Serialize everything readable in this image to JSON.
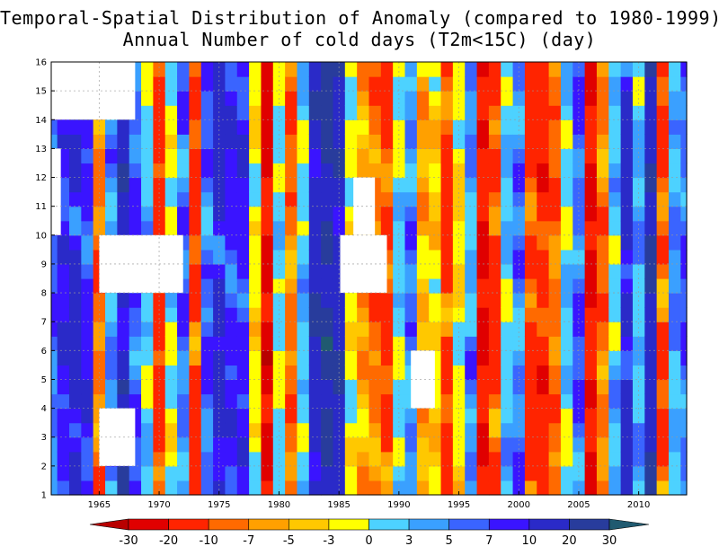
{
  "chart_data": {
    "type": "heatmap",
    "title": "Temporal-Spatial Distribution of Anomaly (compared to 1980-1999) of",
    "subtitle": "Annual Number of cold days (T2m<15C) (day)",
    "xlim": [
      1961,
      2014
    ],
    "ylim": [
      1,
      16
    ],
    "x_ticks": [
      "1965",
      "1970",
      "1975",
      "1980",
      "1985",
      "1990",
      "1995",
      "2000",
      "2005",
      "2010"
    ],
    "x_tick_values": [
      1965,
      1970,
      1975,
      1980,
      1985,
      1990,
      1995,
      2000,
      2005,
      2010
    ],
    "y_ticks": [
      "1",
      "2",
      "3",
      "4",
      "5",
      "6",
      "7",
      "8",
      "9",
      "10",
      "11",
      "12",
      "13",
      "14",
      "15",
      "16"
    ],
    "grid": true,
    "colorbar": {
      "labels": [
        "-30",
        "-20",
        "-10",
        "-7",
        "-5",
        "-3",
        "0",
        "3",
        "5",
        "7",
        "10",
        "20",
        "30"
      ],
      "levels": [
        -30,
        -20,
        -10,
        -7,
        -5,
        -3,
        0,
        3,
        5,
        7,
        10,
        20,
        30
      ],
      "colors": [
        "#b80000",
        "#e00000",
        "#ff2400",
        "#ff6a00",
        "#ffa000",
        "#ffc800",
        "#ffff00",
        "#4dd2ff",
        "#3aa0ff",
        "#3a64ff",
        "#3a14ff",
        "#2a2ac8",
        "#283c9c",
        "#205a70"
      ],
      "placement": "bottom"
    },
    "year_anomaly": [
      {
        "year": 1961,
        "value": 6
      },
      {
        "year": 1962,
        "value": 9
      },
      {
        "year": 1963,
        "value": 12
      },
      {
        "year": 1964,
        "value": 8
      },
      {
        "year": 1965,
        "value": -8
      },
      {
        "year": 1966,
        "value": 4
      },
      {
        "year": 1967,
        "value": 15
      },
      {
        "year": 1968,
        "value": 6
      },
      {
        "year": 1969,
        "value": 2
      },
      {
        "year": 1970,
        "value": -12
      },
      {
        "year": 1971,
        "value": 0
      },
      {
        "year": 1972,
        "value": 6
      },
      {
        "year": 1973,
        "value": -12
      },
      {
        "year": 1974,
        "value": 6
      },
      {
        "year": 1975,
        "value": 12
      },
      {
        "year": 1976,
        "value": 8
      },
      {
        "year": 1977,
        "value": 8
      },
      {
        "year": 1978,
        "value": -2
      },
      {
        "year": 1979,
        "value": -22
      },
      {
        "year": 1980,
        "value": 1
      },
      {
        "year": 1981,
        "value": -8
      },
      {
        "year": 1982,
        "value": 2
      },
      {
        "year": 1983,
        "value": 15
      },
      {
        "year": 1984,
        "value": 22
      },
      {
        "year": 1985,
        "value": 15
      },
      {
        "year": 1986,
        "value": -2
      },
      {
        "year": 1987,
        "value": -6
      },
      {
        "year": 1988,
        "value": -8
      },
      {
        "year": 1989,
        "value": -12
      },
      {
        "year": 1990,
        "value": 1
      },
      {
        "year": 1991,
        "value": 5
      },
      {
        "year": 1992,
        "value": -5
      },
      {
        "year": 1993,
        "value": -3
      },
      {
        "year": 1994,
        "value": -12
      },
      {
        "year": 1995,
        "value": -2
      },
      {
        "year": 1996,
        "value": 4
      },
      {
        "year": 1997,
        "value": -20
      },
      {
        "year": 1998,
        "value": -12
      },
      {
        "year": 1999,
        "value": 2
      },
      {
        "year": 2000,
        "value": 5
      },
      {
        "year": 2001,
        "value": -12
      },
      {
        "year": 2002,
        "value": -15
      },
      {
        "year": 2003,
        "value": -8
      },
      {
        "year": 2004,
        "value": 1
      },
      {
        "year": 2005,
        "value": 6
      },
      {
        "year": 2006,
        "value": -20
      },
      {
        "year": 2007,
        "value": -8
      },
      {
        "year": 2008,
        "value": 2
      },
      {
        "year": 2009,
        "value": 12
      },
      {
        "year": 2010,
        "value": 3
      },
      {
        "year": 2011,
        "value": 18
      },
      {
        "year": 2012,
        "value": -10
      },
      {
        "year": 2013,
        "value": 4
      },
      {
        "year": 2014,
        "value": 6
      }
    ],
    "missing_regions": [
      {
        "x": [
          1961.0,
          1968.0
        ],
        "y": [
          14.0,
          16.0
        ]
      },
      {
        "x": [
          1961.0,
          1961.8
        ],
        "y": [
          10.0,
          13.0
        ]
      },
      {
        "x": [
          1965.0,
          1972.0
        ],
        "y": [
          8.0,
          10.0
        ]
      },
      {
        "x": [
          1965.0,
          1968.0
        ],
        "y": [
          2.0,
          4.0
        ]
      },
      {
        "x": [
          1985.1,
          1989.0
        ],
        "y": [
          8.0,
          10.0
        ]
      },
      {
        "x": [
          1986.2,
          1988.0
        ],
        "y": [
          10.0,
          12.0
        ]
      },
      {
        "x": [
          1991.0,
          1993.0
        ],
        "y": [
          4.0,
          6.0
        ]
      }
    ]
  }
}
